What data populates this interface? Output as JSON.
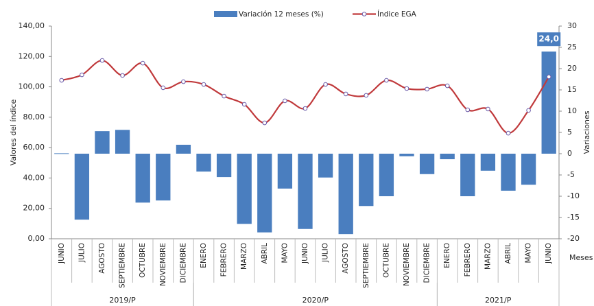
{
  "chart_data": {
    "type": "bar-line",
    "legend": "top",
    "y_label": "Valores del índice",
    "y2_label": "Variaciones",
    "x_label": "Meses",
    "categories": [
      "JUNIO",
      "JULIO",
      "AGOSTO",
      "SEPTIEMBRE",
      "OCTUBRE",
      "NOVIEMBRE",
      "DICIEMBRE",
      "ENERO",
      "FEBRERO",
      "MARZO",
      "ABRIL",
      "MAYO",
      "JUNIO",
      "JULIO",
      "AGOSTO",
      "SEPTIEMBRE",
      "OCTUBRE",
      "NOVIEMBRE",
      "DICIEMBRE",
      "ENERO",
      "FEBRERO",
      "MARZO",
      "ABRIL",
      "MAYO",
      "JUNIO"
    ],
    "groups": [
      {
        "label": "2019/P",
        "span": 7
      },
      {
        "label": "2020/P",
        "span": 12
      },
      {
        "label": "2021/P",
        "span": 6
      }
    ],
    "series": [
      {
        "name": "Variación 12 meses (%)",
        "type": "bar",
        "axis": "y2",
        "color": "#4a7ebf",
        "values": [
          0.1,
          -15.5,
          5.3,
          5.6,
          -11.5,
          -11.0,
          2.1,
          -4.2,
          -5.5,
          -16.5,
          -18.5,
          -8.2,
          -17.7,
          -5.6,
          -18.9,
          -12.3,
          -10.0,
          -0.6,
          -4.8,
          -1.3,
          -10.0,
          -4.0,
          -8.7,
          -7.3,
          24.0
        ],
        "value_labels": [
          null,
          null,
          null,
          null,
          null,
          null,
          null,
          null,
          null,
          null,
          null,
          null,
          null,
          null,
          null,
          null,
          null,
          null,
          null,
          null,
          null,
          null,
          null,
          null,
          "24,0"
        ]
      },
      {
        "name": "Índice EGA",
        "type": "line",
        "axis": "y",
        "color": "#c0393b",
        "values": [
          104.3,
          107.9,
          117.4,
          107.5,
          115.6,
          99.4,
          103.4,
          101.6,
          93.9,
          88.5,
          76.3,
          90.8,
          85.8,
          101.6,
          95.3,
          94.4,
          104.3,
          98.9,
          98.5,
          100.7,
          84.9,
          85.4,
          69.5,
          84.5,
          106.6
        ]
      }
    ],
    "ylim": [
      0,
      140
    ],
    "yticks": [
      {
        "value": 0,
        "label": "0,00"
      },
      {
        "value": 20,
        "label": "20,00"
      },
      {
        "value": 40,
        "label": "40,00"
      },
      {
        "value": 60,
        "label": "60,00"
      },
      {
        "value": 80,
        "label": "80,00"
      },
      {
        "value": 100,
        "label": "100,00"
      },
      {
        "value": 120,
        "label": "120,00"
      },
      {
        "value": 140,
        "label": "140,00"
      }
    ],
    "y2lim": [
      -20,
      30
    ],
    "y2ticks": [
      -20,
      -15,
      -10,
      -5,
      0,
      5,
      10,
      15,
      20,
      25,
      30
    ]
  }
}
